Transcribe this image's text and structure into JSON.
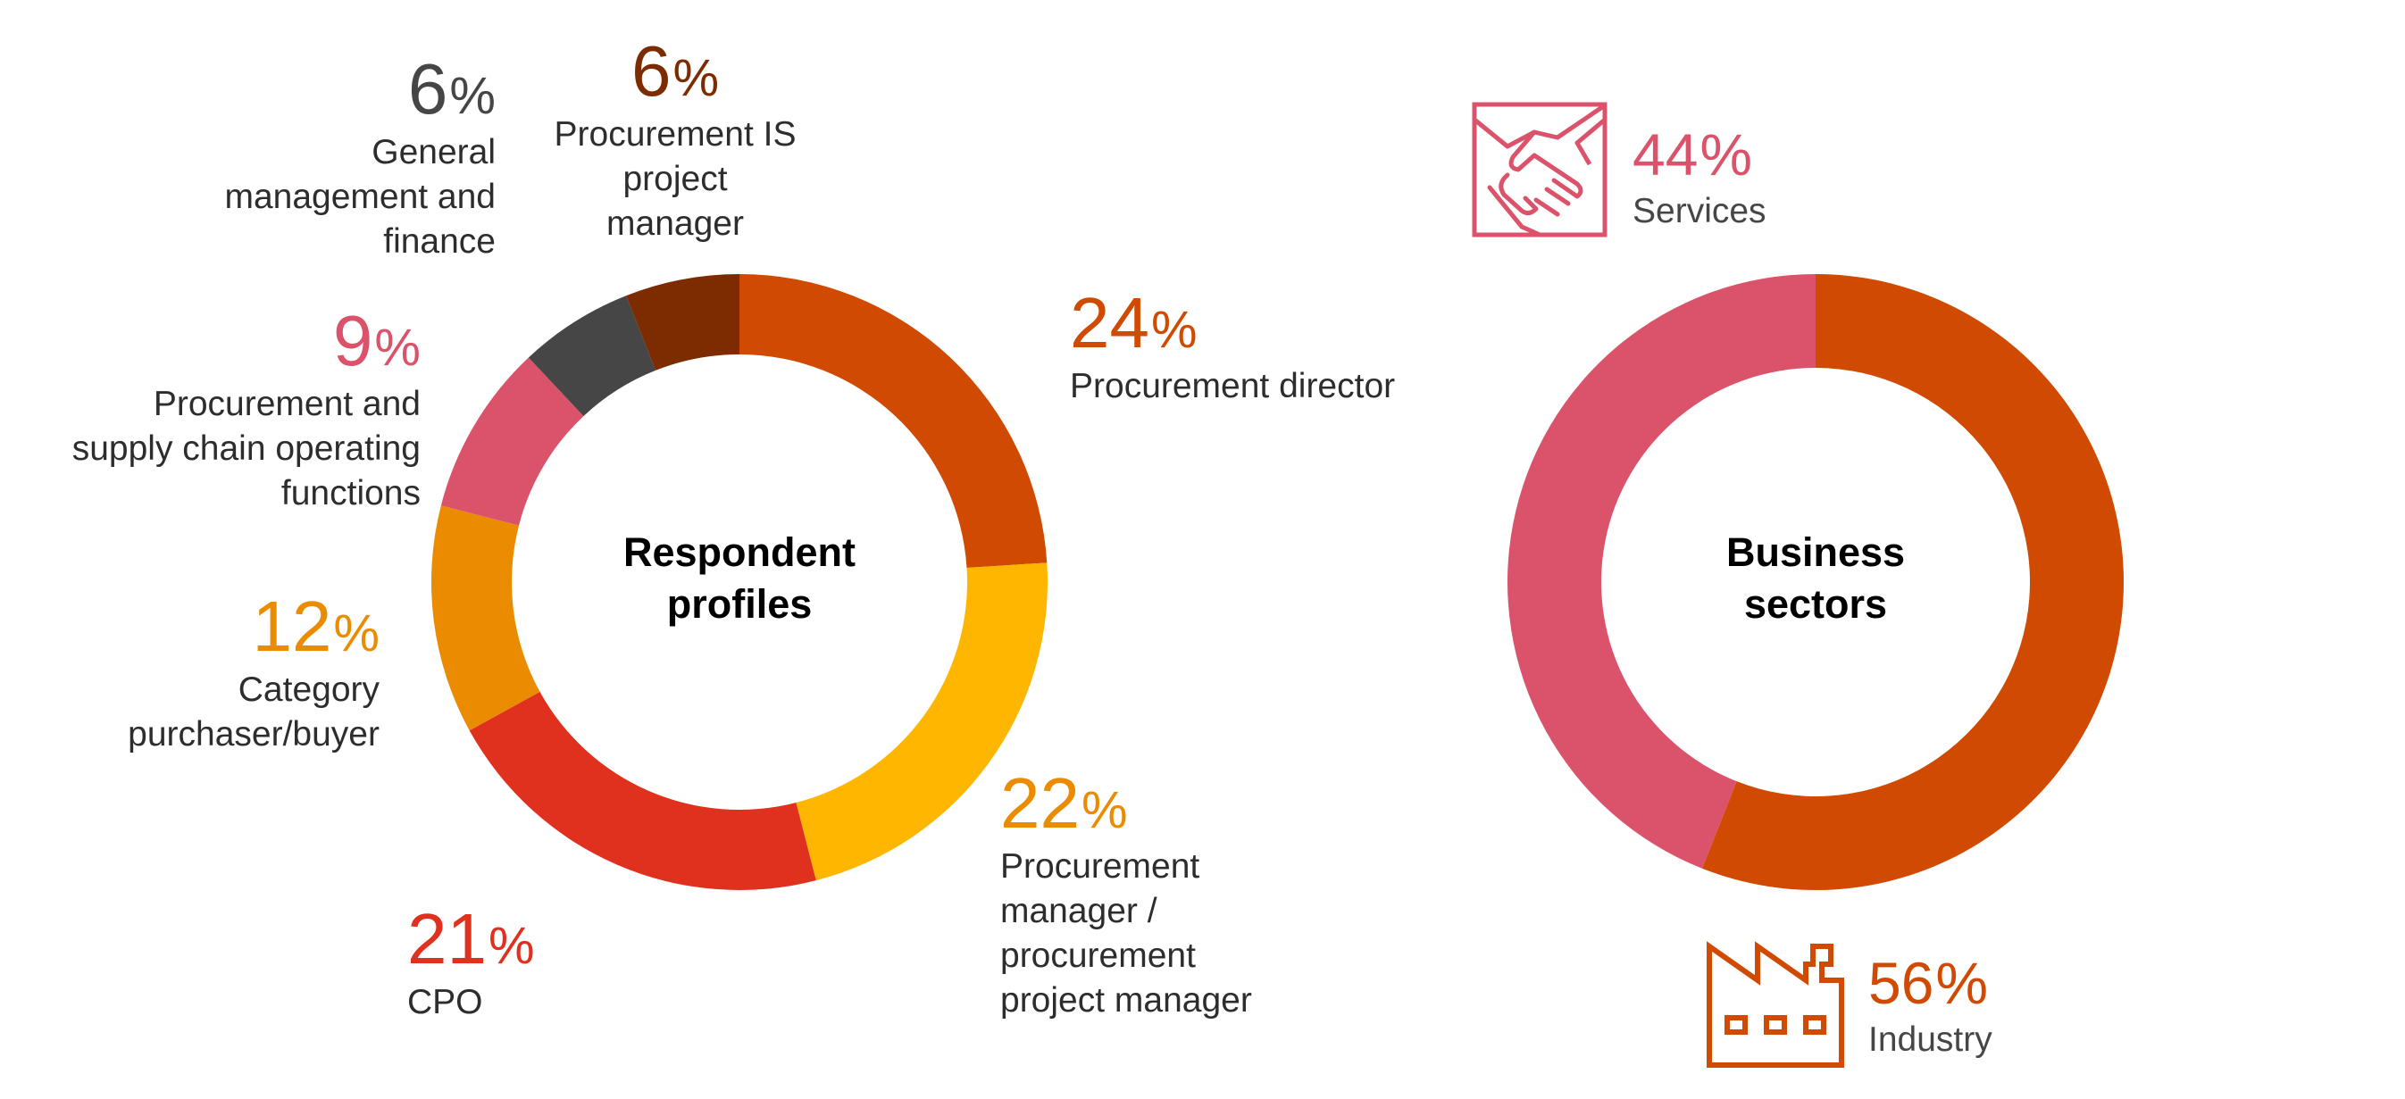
{
  "chart_data": [
    {
      "type": "pie",
      "title": "Respondent profiles",
      "unit": "%",
      "slices": [
        {
          "label": "Procurement director",
          "value": 24,
          "color": "#d04a02"
        },
        {
          "label": "Procurement manager / procurement project manager",
          "value": 22,
          "color": "#ffb600"
        },
        {
          "label": "CPO",
          "value": 21,
          "color": "#e0301e"
        },
        {
          "label": "Category purchaser/buyer",
          "value": 12,
          "color": "#eb8c00"
        },
        {
          "label": "Procurement and supply chain operating functions",
          "value": 9,
          "color": "#db536a"
        },
        {
          "label": "General management and finance",
          "value": 6,
          "color": "#464646"
        },
        {
          "label": "Procurement IS project manager",
          "value": 6,
          "color": "#7d2b00"
        }
      ]
    },
    {
      "type": "pie",
      "title": "Business sectors",
      "unit": "%",
      "slices": [
        {
          "label": "Industry",
          "value": 56,
          "color": "#d04a02",
          "icon": "factory-icon"
        },
        {
          "label": "Services",
          "value": 44,
          "color": "#db536a",
          "icon": "handshake-icon"
        }
      ]
    }
  ],
  "percent_symbol": "%",
  "left_chart": {
    "title_line1": "Respondent",
    "title_line2": "profiles",
    "callouts": {
      "director": {
        "value": "24",
        "label": "Procurement director"
      },
      "manager": {
        "value": "22",
        "label_line1": "Procurement",
        "label_line2": "manager /",
        "label_line3": "procurement",
        "label_line4": "project manager"
      },
      "cpo": {
        "value": "21",
        "label": "CPO"
      },
      "category": {
        "value": "12",
        "label_line1": "Category",
        "label_line2": "purchaser/buyer"
      },
      "supply": {
        "value": "9",
        "label_line1": "Procurement and",
        "label_line2": "supply chain operating",
        "label_line3": "functions"
      },
      "general": {
        "value": "6",
        "label_line1": "General",
        "label_line2": "management and",
        "label_line3": "finance"
      },
      "is_manager": {
        "value": "6",
        "label_line1": "Procurement IS",
        "label_line2": "project",
        "label_line3": "manager"
      }
    }
  },
  "right_chart": {
    "title_line1": "Business",
    "title_line2": "sectors",
    "callouts": {
      "services": {
        "value": "44",
        "label": "Services"
      },
      "industry": {
        "value": "56",
        "label": "Industry"
      }
    }
  }
}
